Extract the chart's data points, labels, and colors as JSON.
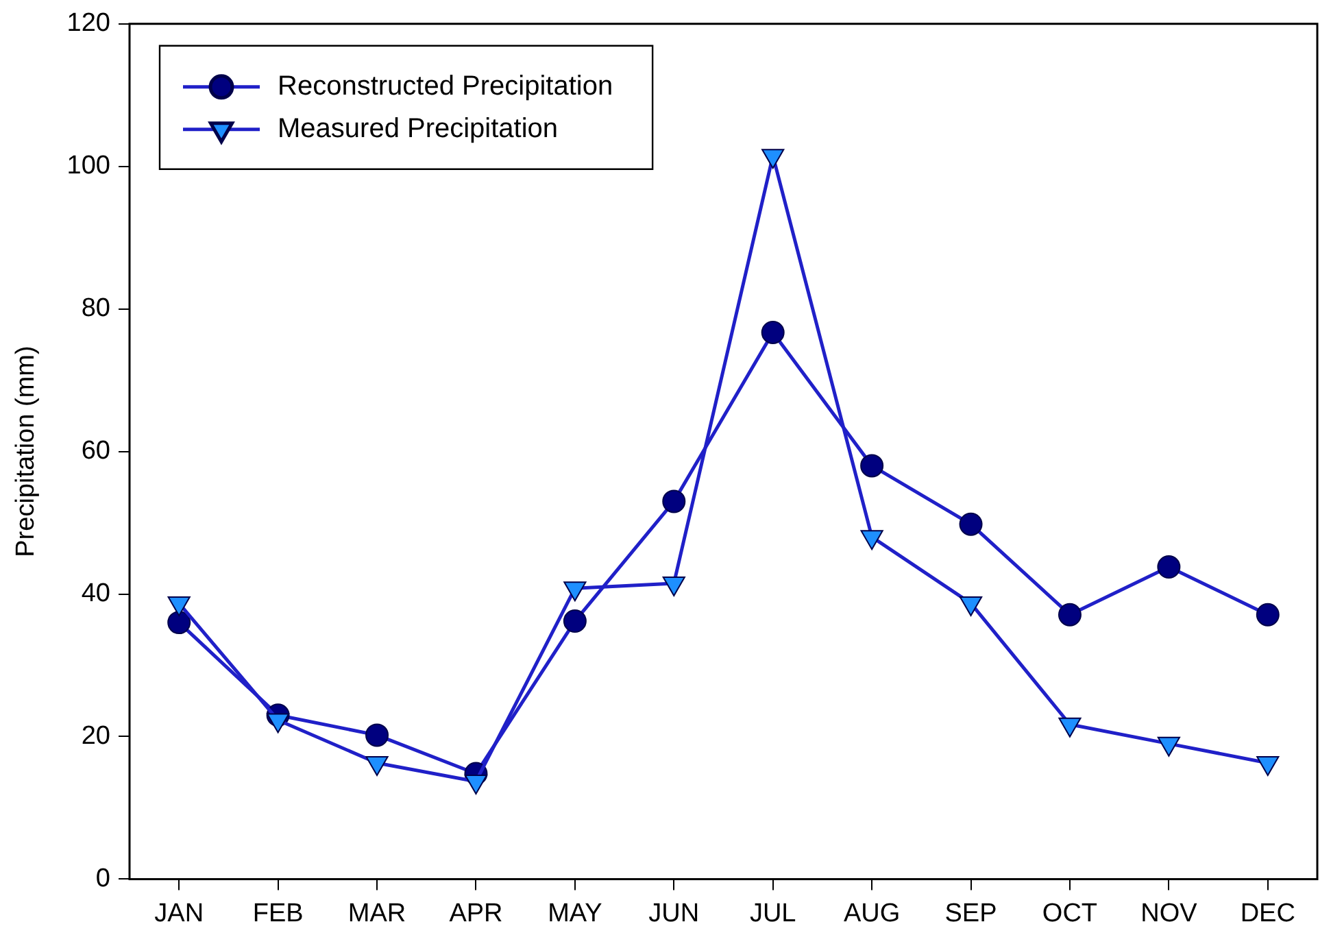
{
  "chart_data": {
    "type": "line",
    "ylabel": "Precipitation (mm)",
    "categories": [
      "JAN",
      "FEB",
      "MAR",
      "APR",
      "MAY",
      "JUN",
      "JUL",
      "AUG",
      "SEP",
      "OCT",
      "NOV",
      "DEC"
    ],
    "series": [
      {
        "name": "Reconstructed Precipitation",
        "color": "#00007f",
        "marker": "circle",
        "values": [
          36,
          23,
          20.2,
          14.8,
          36.2,
          53,
          76.7,
          58,
          49.8,
          37.1,
          43.8,
          37.1
        ]
      },
      {
        "name": "Measured Precipitation",
        "color": "#1e8fff",
        "marker": "triangle",
        "values": [
          38.7,
          22.3,
          16.3,
          13.7,
          40.8,
          41.5,
          101.5,
          48,
          38.7,
          21.7,
          19,
          16.3
        ]
      }
    ],
    "ylim": [
      0,
      120
    ],
    "yticks": [
      0,
      20,
      40,
      60,
      80,
      100,
      120
    ],
    "grid": false,
    "legend": "top left",
    "line_style": "solid"
  }
}
